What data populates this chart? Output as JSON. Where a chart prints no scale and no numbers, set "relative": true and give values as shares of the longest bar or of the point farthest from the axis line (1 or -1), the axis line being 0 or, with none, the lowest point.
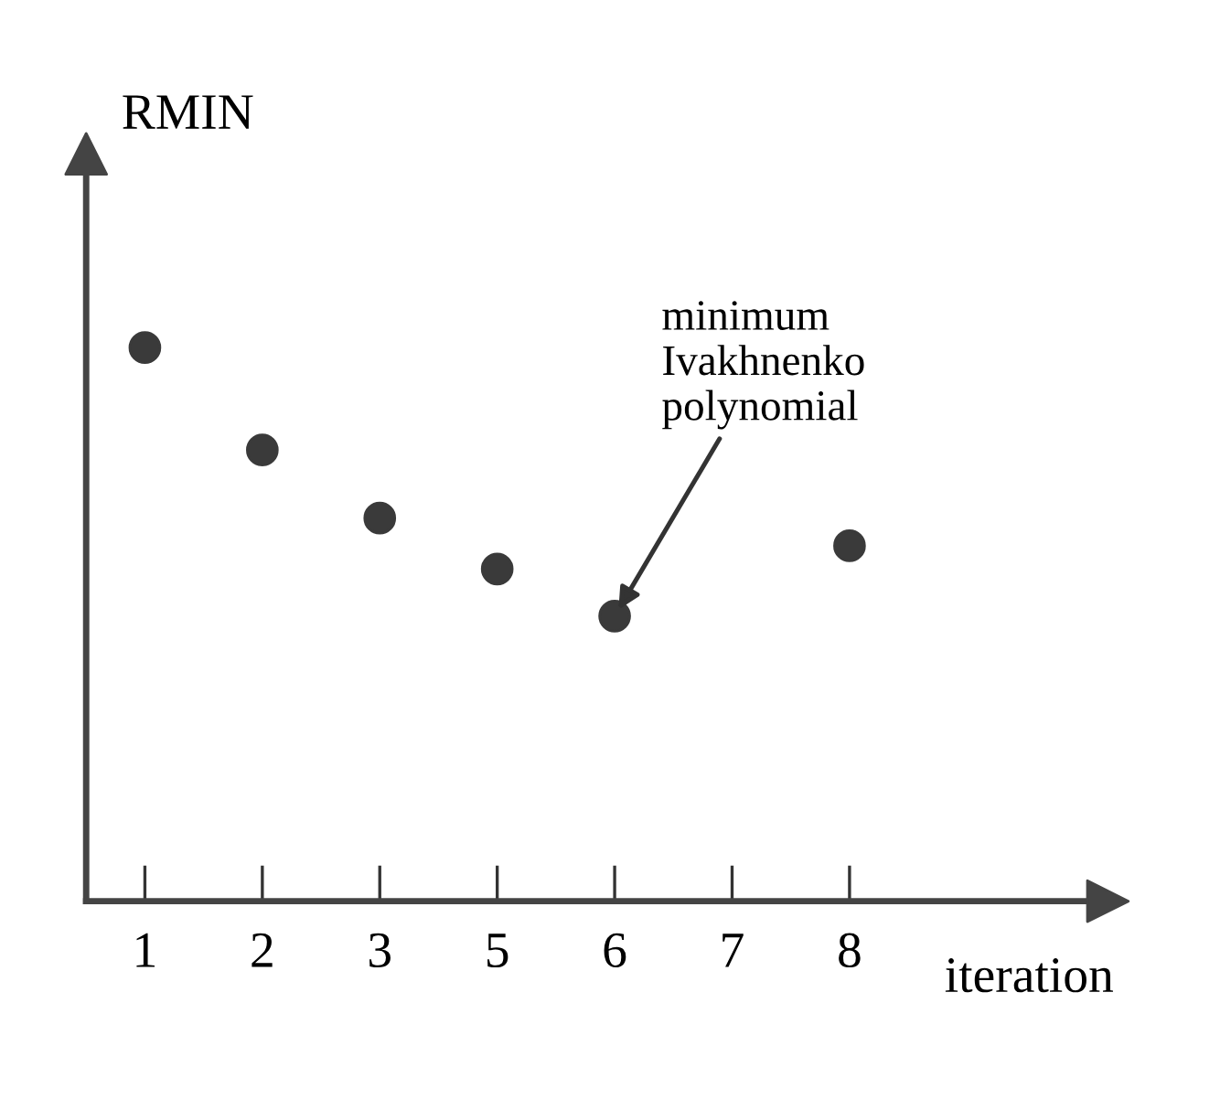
{
  "chart_data": {
    "type": "scatter",
    "relative": true,
    "ylabel": "RMIN",
    "xlabel": "iteration",
    "categories": [
      "1",
      "2",
      "3",
      "5",
      "6",
      "7",
      "8"
    ],
    "series": [
      {
        "color": "#3a3a3a",
        "x": [
          "1",
          "2",
          "3",
          "5",
          "6",
          "8"
        ],
        "values": [
          1,
          0.815,
          0.692,
          0.6,
          0.515,
          0.642
        ]
      }
    ],
    "annotations": [
      {
        "text": "minimum\nIvakhnenko\npolynomial",
        "x": "6",
        "y": 0.515
      }
    ],
    "marker": "circle",
    "grid": false,
    "legend": false
  }
}
